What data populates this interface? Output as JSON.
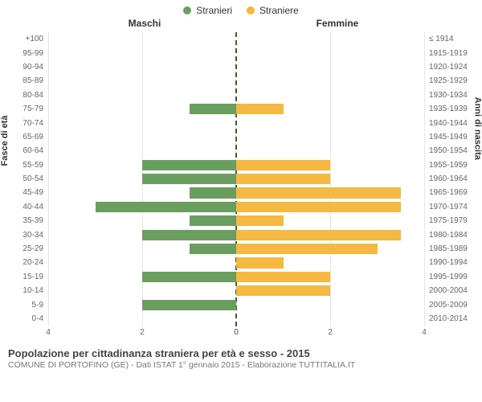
{
  "legend": {
    "male_color": "#6a9e5e",
    "male_label": "Stranieri",
    "female_color": "#f5b840",
    "female_label": "Straniere"
  },
  "headers": {
    "male": "Maschi",
    "female": "Femmine"
  },
  "axis_titles": {
    "left": "Fasce di età",
    "right": "Anni di nascita"
  },
  "x_axis": {
    "max": 4,
    "ticks": [
      0,
      2,
      4
    ]
  },
  "chart": {
    "type": "population-pyramid",
    "background": "#ffffff",
    "grid_color": "#e6e6e6",
    "midline_color": "#4a5a2a",
    "bar_height_ratio": 0.76,
    "rows": [
      {
        "age": "100+",
        "year": "≤ 1914",
        "m": 0,
        "f": 0
      },
      {
        "age": "95-99",
        "year": "1915-1919",
        "m": 0,
        "f": 0
      },
      {
        "age": "90-94",
        "year": "1920-1924",
        "m": 0,
        "f": 0
      },
      {
        "age": "85-89",
        "year": "1925-1929",
        "m": 0,
        "f": 0
      },
      {
        "age": "80-84",
        "year": "1930-1934",
        "m": 0,
        "f": 0
      },
      {
        "age": "75-79",
        "year": "1935-1939",
        "m": 1,
        "f": 1
      },
      {
        "age": "70-74",
        "year": "1940-1944",
        "m": 0,
        "f": 0
      },
      {
        "age": "65-69",
        "year": "1945-1949",
        "m": 0,
        "f": 0
      },
      {
        "age": "60-64",
        "year": "1950-1954",
        "m": 0,
        "f": 0
      },
      {
        "age": "55-59",
        "year": "1955-1959",
        "m": 2,
        "f": 2
      },
      {
        "age": "50-54",
        "year": "1960-1964",
        "m": 2,
        "f": 2
      },
      {
        "age": "45-49",
        "year": "1965-1969",
        "m": 1,
        "f": 3.5
      },
      {
        "age": "40-44",
        "year": "1970-1974",
        "m": 3,
        "f": 3.5
      },
      {
        "age": "35-39",
        "year": "1975-1979",
        "m": 1,
        "f": 1
      },
      {
        "age": "30-34",
        "year": "1980-1984",
        "m": 2,
        "f": 3.5
      },
      {
        "age": "25-29",
        "year": "1985-1989",
        "m": 1,
        "f": 3
      },
      {
        "age": "20-24",
        "year": "1990-1994",
        "m": 0,
        "f": 1
      },
      {
        "age": "15-19",
        "year": "1995-1999",
        "m": 2,
        "f": 2
      },
      {
        "age": "10-14",
        "year": "2000-2004",
        "m": 0,
        "f": 2
      },
      {
        "age": "5-9",
        "year": "2005-2009",
        "m": 2,
        "f": 0
      },
      {
        "age": "0-4",
        "year": "2010-2014",
        "m": 0,
        "f": 0
      }
    ]
  },
  "caption": {
    "title": "Popolazione per cittadinanza straniera per età e sesso - 2015",
    "subtitle": "COMUNE DI PORTOFINO (GE) - Dati ISTAT 1° gennaio 2015 - Elaborazione TUTTITALIA.IT"
  }
}
